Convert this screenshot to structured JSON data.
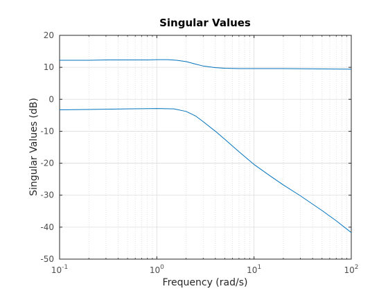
{
  "chart_data": {
    "type": "line",
    "title": "Singular Values",
    "xlabel": "Frequency (rad/s)",
    "ylabel": "Singular Values (dB)",
    "x_scale": "log",
    "xlim": [
      0.1,
      100
    ],
    "ylim": [
      -50,
      20
    ],
    "grid": true,
    "x_ticks": [
      {
        "value": 0.1,
        "base": "10",
        "exp": "-1"
      },
      {
        "value": 1,
        "base": "10",
        "exp": "0"
      },
      {
        "value": 10,
        "base": "10",
        "exp": "1"
      },
      {
        "value": 100,
        "base": "10",
        "exp": "2"
      }
    ],
    "y_ticks": [
      20,
      10,
      0,
      -10,
      -20,
      -30,
      -40,
      -50
    ],
    "line_color": "#0072bd",
    "series": [
      {
        "x": [
          0.1,
          0.2,
          0.3,
          0.5,
          0.8,
          1.0,
          1.3,
          1.6,
          2.0,
          2.5,
          3.0,
          4.0,
          5.0,
          7.0,
          10,
          20,
          50,
          100
        ],
        "y": [
          12.2,
          12.2,
          12.3,
          12.3,
          12.3,
          12.4,
          12.4,
          12.2,
          11.8,
          11.0,
          10.4,
          9.9,
          9.7,
          9.6,
          9.6,
          9.6,
          9.5,
          9.4
        ]
      },
      {
        "x": [
          0.1,
          0.2,
          0.5,
          1.0,
          1.5,
          2.0,
          2.5,
          3.0,
          4.0,
          5.0,
          7.0,
          10,
          15,
          20,
          30,
          50,
          70,
          100
        ],
        "y": [
          -3.3,
          -3.2,
          -3.0,
          -2.9,
          -3.0,
          -3.8,
          -5.2,
          -7.0,
          -10.0,
          -12.5,
          -16.4,
          -20.4,
          -24.2,
          -26.8,
          -30.2,
          -34.8,
          -38.0,
          -41.7
        ]
      }
    ]
  }
}
